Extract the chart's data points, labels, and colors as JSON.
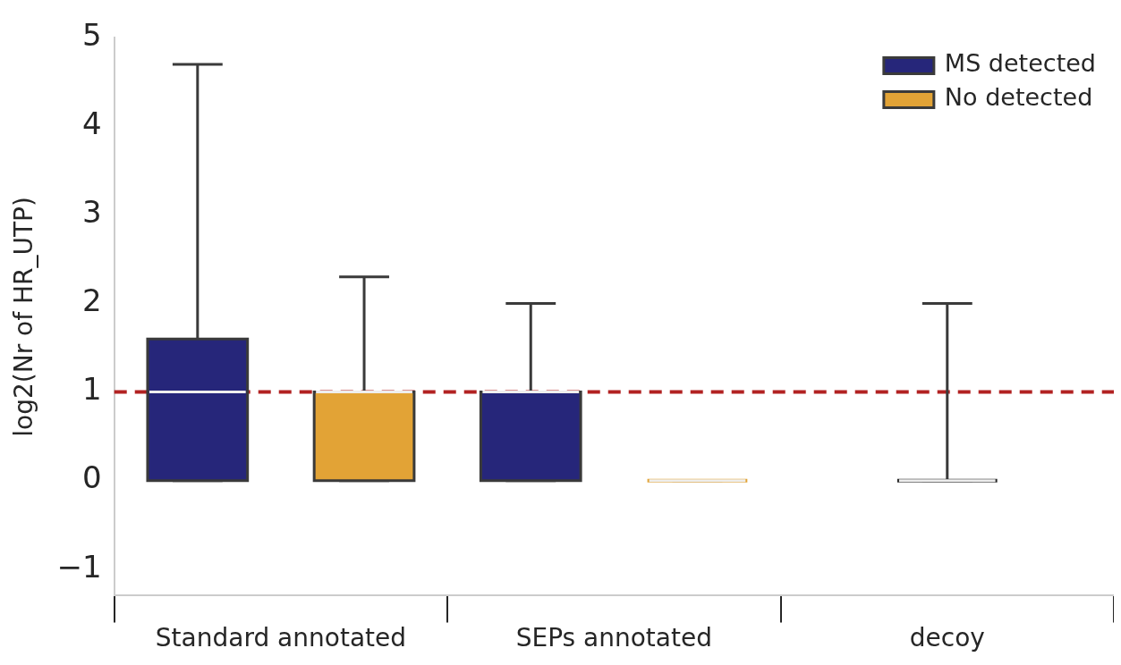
{
  "chart_data": {
    "type": "box",
    "ylabel": "log2(Nr of HR_UTP)",
    "categories": [
      "Standard annotated",
      "SEPs annotated",
      "decoy"
    ],
    "series": [
      {
        "name": "MS detected",
        "color": "#26267a",
        "boxes": [
          {
            "low": 0,
            "q1": 0,
            "median": 1,
            "q3": 1.6,
            "high": 4.7
          },
          {
            "low": 0,
            "q1": 0,
            "median": 1,
            "q3": 1,
            "high": 2.0
          },
          null
        ]
      },
      {
        "name": "No detected",
        "color": "#e2a336",
        "boxes": [
          {
            "low": 0,
            "q1": 0,
            "median": 1,
            "q3": 1,
            "high": 2.3
          },
          {
            "low": 0,
            "q1": 0,
            "median": 0,
            "q3": 0,
            "high": 0
          },
          null
        ]
      },
      {
        "color": "#262626",
        "boxes": [
          null,
          null,
          {
            "low": 0,
            "q1": 0,
            "median": 0,
            "q3": 0,
            "high": 2.0
          }
        ]
      }
    ],
    "ylim": [
      -1.3,
      5
    ],
    "yticks": [
      {
        "value": -1,
        "label": "−1"
      },
      0,
      1,
      2,
      3,
      4,
      5
    ],
    "ref_lines": [
      {
        "axis": "y",
        "value": 1,
        "color": "#b22222",
        "line_style": "dashed"
      }
    ],
    "grid": false,
    "legend": "top right"
  }
}
